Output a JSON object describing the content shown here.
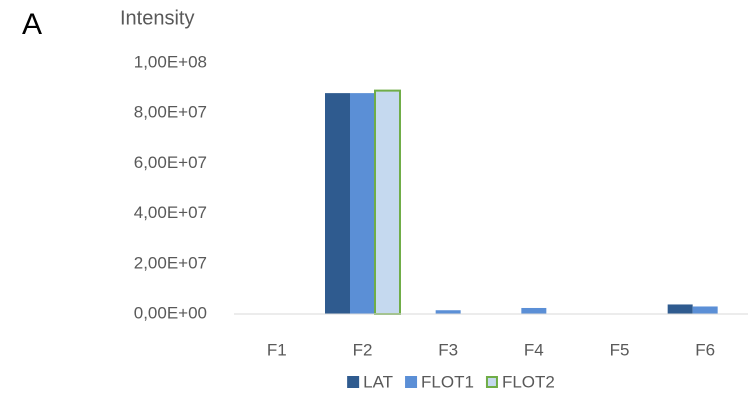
{
  "panel_label": "A",
  "chart_data": {
    "type": "bar",
    "y_label": "Intensity",
    "categories": [
      "F1",
      "F2",
      "F3",
      "F4",
      "F5",
      "F6"
    ],
    "series": [
      {
        "name": "LAT",
        "color": "#2f5b8f",
        "values": [
          0,
          88000000,
          0,
          0,
          0,
          3800000
        ]
      },
      {
        "name": "FLOT1",
        "color": "#5b8fd6",
        "values": [
          0,
          88000000,
          1500000,
          2400000,
          0,
          3000000
        ]
      },
      {
        "name": "FLOT2",
        "color": "#c5d9ef",
        "edgecolor": "#70ad47",
        "values": [
          0,
          89000000,
          0,
          0,
          0,
          0
        ]
      }
    ],
    "ylim": [
      0,
      100000000
    ],
    "yticks": [
      {
        "value": 0,
        "label": "0,00E+00"
      },
      {
        "value": 20000000,
        "label": "2,00E+07"
      },
      {
        "value": 40000000,
        "label": "4,00E+07"
      },
      {
        "value": 60000000,
        "label": "6,00E+07"
      },
      {
        "value": 80000000,
        "label": "8,00E+07"
      },
      {
        "value": 100000000,
        "label": "1,00E+08"
      }
    ],
    "grid": false,
    "legend": "bottom"
  }
}
